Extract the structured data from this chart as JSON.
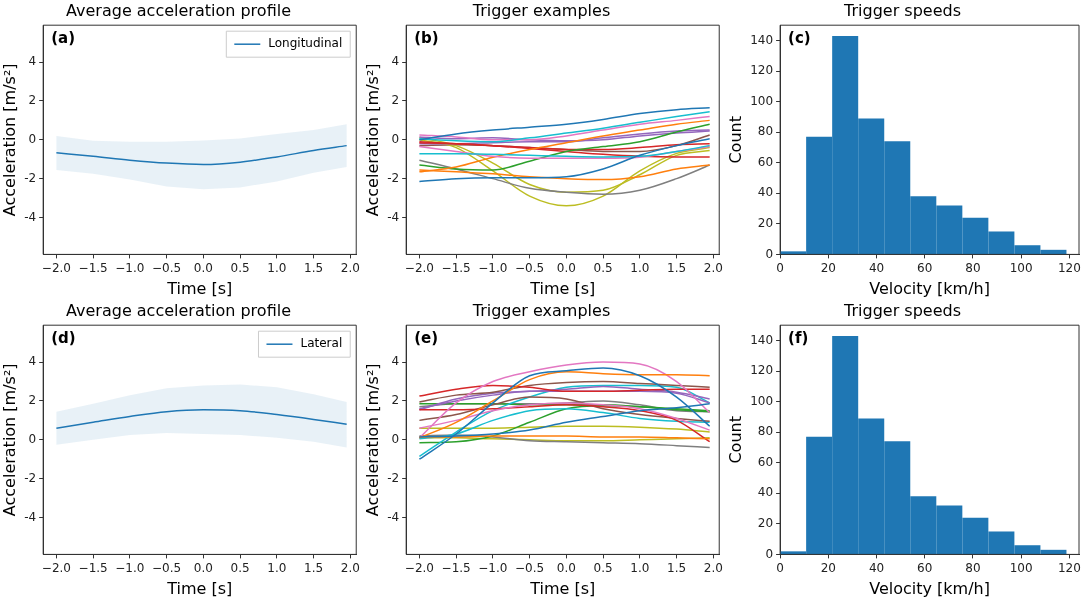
{
  "chart_data": [
    {
      "type": "line",
      "title": "Average acceleration profile",
      "xlabel": "Time [s]",
      "ylabel": "Acceleration [m/s²]",
      "annotations": [
        "(a)"
      ],
      "legend": "top right",
      "marker": "none",
      "x": [
        -2,
        -1.5,
        -1,
        -0.5,
        0,
        0.5,
        1,
        1.5,
        1.95
      ],
      "xlim": [
        -2.18,
        2.08
      ],
      "ylim": [
        -5.9,
        5.9
      ],
      "xticks": [
        {
          "value": -2,
          "label": "−2.0"
        },
        {
          "value": -1.5,
          "label": "−1.5"
        },
        {
          "value": -1,
          "label": "−1.0"
        },
        {
          "value": -0.5,
          "label": "−0.5"
        },
        {
          "value": 0,
          "label": "0.0"
        },
        {
          "value": 0.5,
          "label": "0.5"
        },
        {
          "value": 1,
          "label": "1.0"
        },
        {
          "value": 1.5,
          "label": "1.5"
        },
        {
          "value": 2,
          "label": "2.0"
        }
      ],
      "yticks": [
        -4,
        -2,
        0,
        2,
        4
      ],
      "series": [
        {
          "name": "Longitudinal",
          "color": "#1f77b4",
          "values": [
            -0.67,
            -0.85,
            -1.05,
            -1.2,
            -1.27,
            -1.15,
            -0.88,
            -0.55,
            -0.3
          ],
          "lower": [
            -1.55,
            -1.75,
            -2.05,
            -2.4,
            -2.55,
            -2.45,
            -2.15,
            -1.7,
            -1.4
          ],
          "upper": [
            0.2,
            -0.05,
            -0.1,
            -0.1,
            -0.03,
            0.07,
            0.3,
            0.5,
            0.8
          ]
        }
      ]
    },
    {
      "type": "line",
      "title": "Trigger examples",
      "xlabel": "Time [s]",
      "ylabel": "Acceleration [m/s²]",
      "annotations": [
        "(b)"
      ],
      "marker": "none",
      "x": [
        -2,
        -1.5,
        -1,
        -0.5,
        0,
        0.5,
        1,
        1.5,
        1.95
      ],
      "xlim": [
        -2.18,
        2.08
      ],
      "ylim": [
        -5.9,
        5.9
      ],
      "xticks": [
        {
          "value": -2,
          "label": "−2.0"
        },
        {
          "value": -1.5,
          "label": "−1.5"
        },
        {
          "value": -1,
          "label": "−1.0"
        },
        {
          "value": -0.5,
          "label": "−0.5"
        },
        {
          "value": 0,
          "label": "0.0"
        },
        {
          "value": 0.5,
          "label": "0.5"
        },
        {
          "value": 1,
          "label": "1.0"
        },
        {
          "value": 1.5,
          "label": "1.5"
        },
        {
          "value": 2,
          "label": "2.0"
        }
      ],
      "yticks": [
        -4,
        -2,
        0,
        2,
        4
      ],
      "series": [
        {
          "color": "#1f77b4",
          "values": [
            0.0,
            0.3,
            0.5,
            0.65,
            0.8,
            1.05,
            1.35,
            1.55,
            1.65
          ]
        },
        {
          "color": "#1f77b4",
          "values": [
            -2.15,
            -2.0,
            -1.95,
            -1.95,
            -1.9,
            -1.5,
            -0.8,
            -0.3,
            0.05
          ]
        },
        {
          "color": "#17becf",
          "values": [
            0.05,
            -0.05,
            -0.1,
            0.1,
            0.35,
            0.6,
            0.9,
            1.2,
            1.45
          ]
        },
        {
          "color": "#17becf",
          "values": [
            -0.72,
            -0.72,
            -0.75,
            -0.8,
            -0.85,
            -0.88,
            -0.85,
            -0.6,
            -0.3
          ]
        },
        {
          "color": "#e377c2",
          "values": [
            0.25,
            0.15,
            0.0,
            0.0,
            0.2,
            0.5,
            0.8,
            1.0,
            1.2
          ]
        },
        {
          "color": "#e377c2",
          "values": [
            -0.35,
            -0.6,
            -0.85,
            -0.95,
            -0.95,
            -0.95,
            -0.9,
            -0.6,
            -0.35
          ]
        },
        {
          "color": "#ff7f0e",
          "values": [
            -1.65,
            -1.4,
            -0.9,
            -0.5,
            -0.15,
            0.2,
            0.5,
            0.8,
            1.0
          ]
        },
        {
          "color": "#ff7f0e",
          "values": [
            -1.55,
            -1.65,
            -1.75,
            -1.9,
            -2.0,
            -2.05,
            -1.9,
            -1.5,
            -1.3
          ]
        },
        {
          "color": "#2ca02c",
          "values": [
            -1.3,
            -1.5,
            -1.55,
            -1.1,
            -0.6,
            -0.35,
            -0.1,
            0.4,
            0.8
          ]
        },
        {
          "color": "#d62728",
          "values": [
            -0.15,
            -0.2,
            -0.3,
            -0.45,
            -0.6,
            -0.75,
            -0.85,
            -0.88,
            -0.88
          ]
        },
        {
          "color": "#d62728",
          "values": [
            -0.1,
            -0.2,
            -0.3,
            -0.4,
            -0.5,
            -0.5,
            -0.4,
            -0.25,
            -0.2
          ]
        },
        {
          "color": "#9467bd",
          "values": [
            0.15,
            0.05,
            0.1,
            0.0,
            -0.05,
            0.0,
            0.2,
            0.35,
            0.45
          ]
        },
        {
          "color": "#9467bd",
          "values": [
            -0.2,
            -0.2,
            -0.15,
            -0.1,
            -0.1,
            0.1,
            0.3,
            0.45,
            0.5
          ]
        },
        {
          "color": "#7f7f7f",
          "values": [
            -1.05,
            -1.5,
            -2.0,
            -2.5,
            -2.7,
            -2.8,
            -2.6,
            -2.0,
            -1.3
          ]
        },
        {
          "color": "#bcbd22",
          "values": [
            0.0,
            -0.4,
            -1.6,
            -2.9,
            -3.4,
            -2.9,
            -1.6,
            -0.7,
            -0.4
          ]
        },
        {
          "color": "#bcbd22",
          "values": [
            0.1,
            -0.3,
            -1.2,
            -2.3,
            -2.7,
            -2.6,
            -1.8,
            -0.8,
            -0.55
          ]
        },
        {
          "color": "#8c564b",
          "values": [
            -0.3,
            -0.25,
            -0.3,
            -0.4,
            -0.5,
            -0.6,
            -0.6,
            -0.3,
            0.25
          ]
        }
      ]
    },
    {
      "type": "histogram",
      "title": "Trigger speeds",
      "xlabel": "Velocity [km/h]",
      "ylabel": "Count",
      "annotations": [
        "(c)"
      ],
      "color": "#1f77b4",
      "bins": [
        0,
        10.8,
        21.6,
        32.4,
        43.2,
        54,
        64.8,
        75.6,
        86.4,
        97.2,
        108,
        118.8
      ],
      "values": [
        2,
        77,
        143,
        89,
        74,
        38,
        32,
        24,
        15,
        6,
        3
      ],
      "xlim": [
        0,
        124
      ],
      "ylim": [
        0,
        150
      ],
      "xticks": [
        0,
        20,
        40,
        60,
        80,
        100,
        120
      ],
      "yticks": [
        0,
        20,
        40,
        60,
        80,
        100,
        120,
        140
      ]
    },
    {
      "type": "line",
      "title": "Average acceleration profile",
      "xlabel": "Time [s]",
      "ylabel": "Acceleration [m/s²]",
      "annotations": [
        "(d)"
      ],
      "legend": "top right",
      "marker": "none",
      "x": [
        -2,
        -1.5,
        -1,
        -0.5,
        0,
        0.5,
        1,
        1.5,
        1.95
      ],
      "xlim": [
        -2.18,
        2.08
      ],
      "ylim": [
        -5.9,
        5.9
      ],
      "xticks": [
        {
          "value": -2,
          "label": "−2.0"
        },
        {
          "value": -1.5,
          "label": "−1.5"
        },
        {
          "value": -1,
          "label": "−1.0"
        },
        {
          "value": -0.5,
          "label": "−0.5"
        },
        {
          "value": 0,
          "label": "0.0"
        },
        {
          "value": 0.5,
          "label": "0.5"
        },
        {
          "value": 1,
          "label": "1.0"
        },
        {
          "value": 1.5,
          "label": "1.5"
        },
        {
          "value": 2,
          "label": "2.0"
        }
      ],
      "yticks": [
        -4,
        -2,
        0,
        2,
        4
      ],
      "series": [
        {
          "name": "Lateral",
          "color": "#1f77b4",
          "values": [
            0.6,
            0.9,
            1.2,
            1.45,
            1.55,
            1.5,
            1.3,
            1.05,
            0.8
          ],
          "lower": [
            -0.25,
            0.0,
            0.25,
            0.35,
            0.3,
            0.25,
            0.1,
            -0.1,
            -0.4
          ],
          "upper": [
            1.45,
            1.85,
            2.3,
            2.65,
            2.8,
            2.85,
            2.7,
            2.35,
            1.95
          ]
        }
      ]
    },
    {
      "type": "line",
      "title": "Trigger examples",
      "xlabel": "Time [s]",
      "ylabel": "Acceleration [m/s²]",
      "annotations": [
        "(e)"
      ],
      "marker": "none",
      "x": [
        -2,
        -1.5,
        -1,
        -0.5,
        0,
        0.5,
        1,
        1.5,
        1.95
      ],
      "xlim": [
        -2.18,
        2.08
      ],
      "ylim": [
        -5.9,
        5.9
      ],
      "xticks": [
        {
          "value": -2,
          "label": "−2.0"
        },
        {
          "value": -1.5,
          "label": "−1.5"
        },
        {
          "value": -1,
          "label": "−1.0"
        },
        {
          "value": -0.5,
          "label": "−0.5"
        },
        {
          "value": 0,
          "label": "0.0"
        },
        {
          "value": 0.5,
          "label": "0.5"
        },
        {
          "value": 1,
          "label": "1.0"
        },
        {
          "value": 1.5,
          "label": "1.5"
        },
        {
          "value": 2,
          "label": "2.0"
        }
      ],
      "yticks": [
        -4,
        -2,
        0,
        2,
        4
      ],
      "series": [
        {
          "color": "#1f77b4",
          "values": [
            -1.0,
            0.3,
            1.9,
            3.3,
            3.55,
            3.7,
            3.3,
            2.2,
            0.7
          ]
        },
        {
          "color": "#1f77b4",
          "values": [
            0.15,
            0.2,
            0.3,
            0.5,
            0.9,
            1.2,
            1.5,
            1.65,
            1.85
          ]
        },
        {
          "color": "#ff7f0e",
          "values": [
            0.1,
            0.9,
            2.0,
            3.1,
            3.5,
            3.4,
            3.35,
            3.35,
            3.3
          ]
        },
        {
          "color": "#ff7f0e",
          "values": [
            0.15,
            0.15,
            0.2,
            0.2,
            0.2,
            0.15,
            0.15,
            0.1,
            0.05
          ]
        },
        {
          "color": "#e377c2",
          "values": [
            0.1,
            1.9,
            3.0,
            3.5,
            3.85,
            4.0,
            3.9,
            3.0,
            1.4
          ]
        },
        {
          "color": "#e377c2",
          "values": [
            0.6,
            1.0,
            1.5,
            1.8,
            1.9,
            1.8,
            1.6,
            1.1,
            0.5
          ]
        },
        {
          "color": "#d62728",
          "values": [
            2.25,
            2.6,
            2.8,
            2.7,
            2.5,
            2.5,
            2.55,
            2.6,
            2.6
          ]
        },
        {
          "color": "#d62728",
          "values": [
            1.55,
            1.55,
            1.6,
            1.7,
            1.8,
            1.7,
            1.5,
            1.0,
            -0.1
          ]
        },
        {
          "color": "#8c564b",
          "values": [
            1.95,
            2.3,
            2.45,
            2.8,
            2.95,
            3.0,
            2.9,
            2.8,
            2.7
          ]
        },
        {
          "color": "#8c564b",
          "values": [
            1.0,
            1.3,
            1.8,
            2.2,
            2.1,
            1.6,
            1.3,
            1.1,
            0.95
          ]
        },
        {
          "color": "#9467bd",
          "values": [
            1.55,
            2.1,
            2.4,
            2.5,
            2.6,
            2.75,
            2.6,
            2.45,
            2.1
          ]
        },
        {
          "color": "#9467bd",
          "values": [
            1.6,
            2.0,
            2.3,
            2.5,
            2.5,
            2.5,
            2.5,
            2.4,
            1.9
          ]
        },
        {
          "color": "#17becf",
          "values": [
            -0.85,
            0.4,
            1.5,
            2.2,
            2.7,
            2.8,
            2.8,
            2.7,
            1.9
          ]
        },
        {
          "color": "#17becf",
          "values": [
            0.05,
            0.3,
            1.0,
            1.5,
            1.6,
            1.4,
            1.1,
            0.95,
            0.9
          ]
        },
        {
          "color": "#2ca02c",
          "values": [
            -0.15,
            -0.1,
            0.2,
            0.9,
            1.6,
            1.75,
            1.7,
            1.6,
            1.5
          ]
        },
        {
          "color": "#2ca02c",
          "values": [
            1.85,
            1.85,
            1.85,
            1.8,
            1.8,
            1.8,
            1.7,
            1.55,
            1.45
          ]
        },
        {
          "color": "#7f7f7f",
          "values": [
            0.2,
            0.25,
            0.15,
            -0.05,
            -0.1,
            -0.15,
            -0.2,
            -0.3,
            -0.4
          ]
        },
        {
          "color": "#7f7f7f",
          "values": [
            1.7,
            1.85,
            1.85,
            1.85,
            1.9,
            2.0,
            1.8,
            1.5,
            1.45
          ]
        },
        {
          "color": "#bcbd22",
          "values": [
            0.6,
            0.6,
            0.6,
            0.65,
            0.7,
            0.7,
            0.65,
            0.55,
            0.4
          ]
        },
        {
          "color": "#bcbd22",
          "values": [
            0.1,
            0.1,
            0.05,
            0.0,
            -0.05,
            -0.05,
            0.0,
            0.05,
            0.1
          ]
        }
      ]
    },
    {
      "type": "histogram",
      "title": "Trigger speeds",
      "xlabel": "Velocity [km/h]",
      "ylabel": "Count",
      "annotations": [
        "(f)"
      ],
      "color": "#1f77b4",
      "bins": [
        0,
        10.8,
        21.6,
        32.4,
        43.2,
        54,
        64.8,
        75.6,
        86.4,
        97.2,
        108,
        118.8
      ],
      "values": [
        2,
        77,
        143,
        89,
        74,
        38,
        32,
        24,
        15,
        6,
        3
      ],
      "xlim": [
        0,
        124
      ],
      "ylim": [
        0,
        150
      ],
      "xticks": [
        0,
        20,
        40,
        60,
        80,
        100,
        120
      ],
      "yticks": [
        0,
        20,
        40,
        60,
        80,
        100,
        120,
        140
      ]
    }
  ]
}
